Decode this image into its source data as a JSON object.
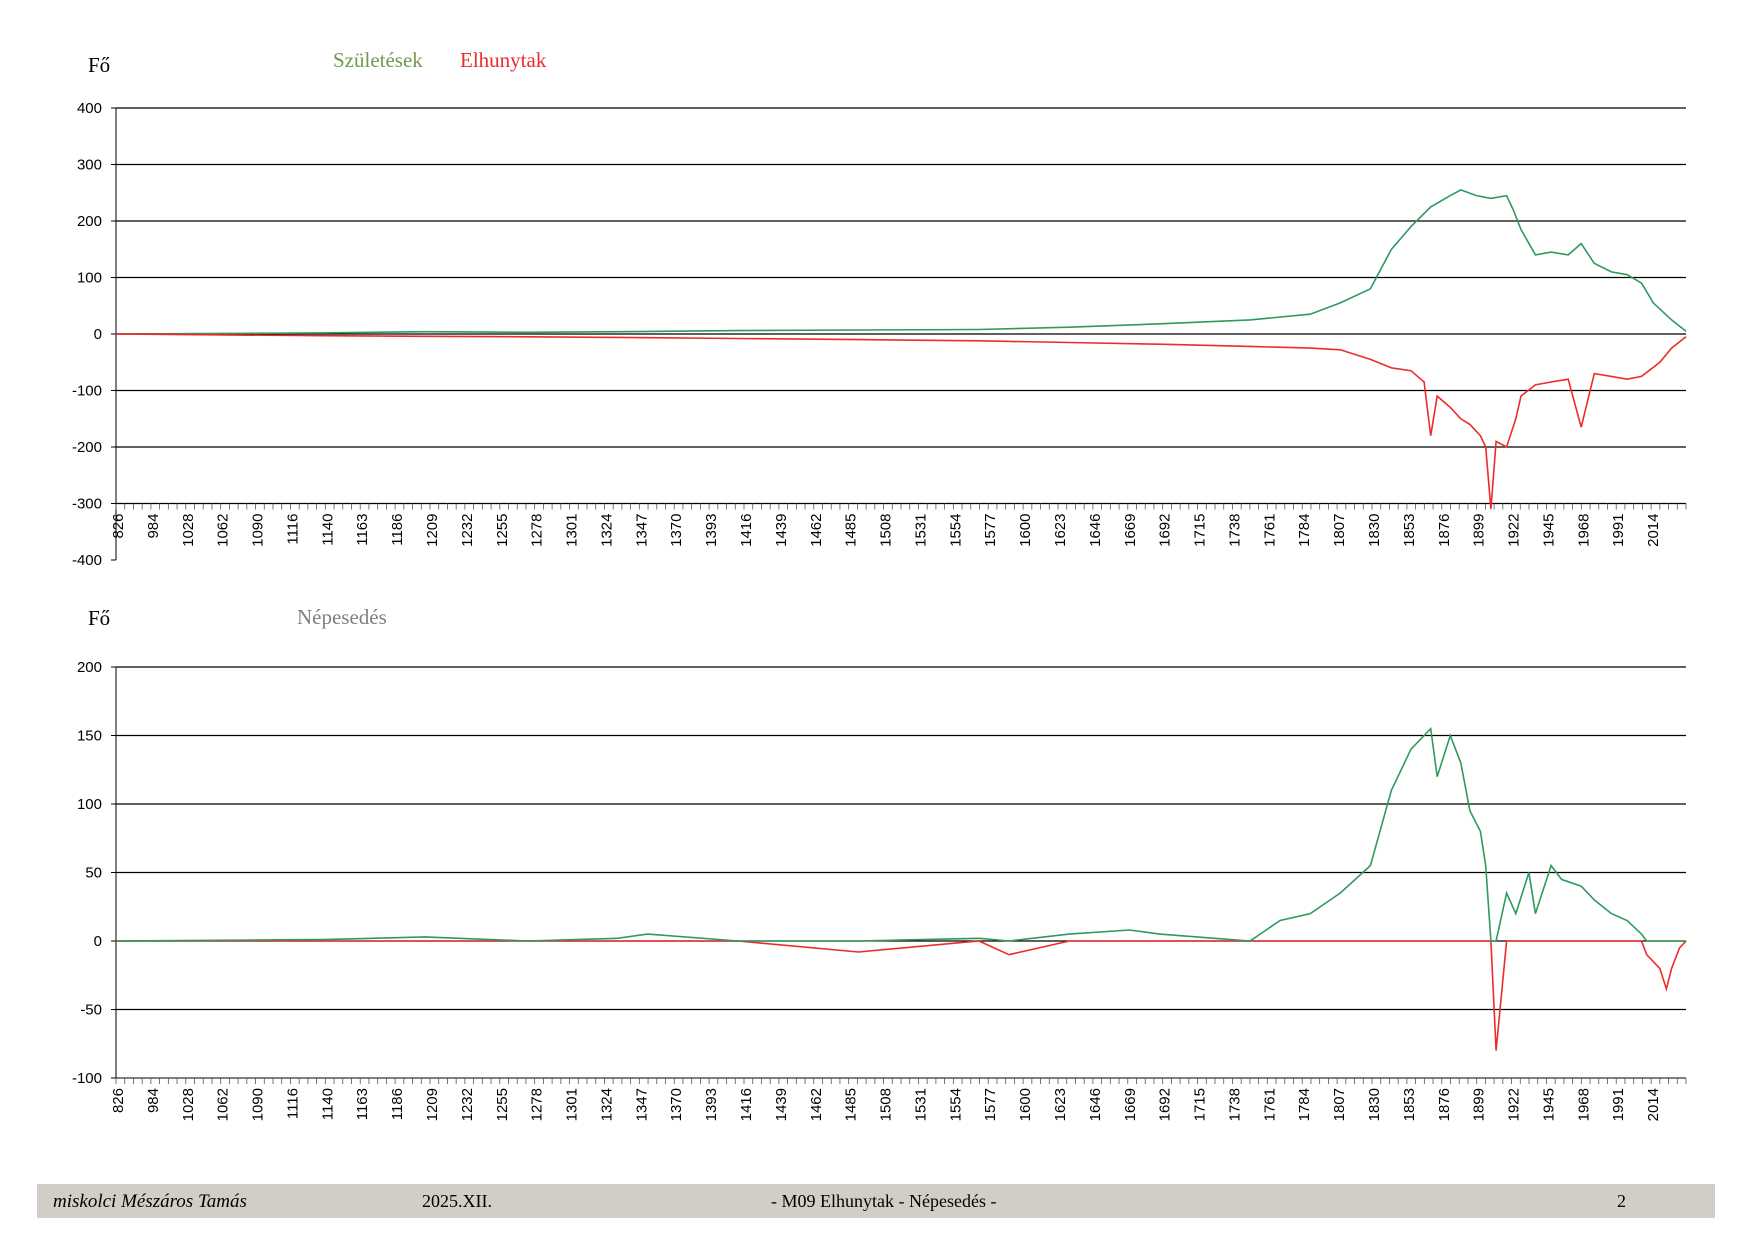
{
  "charts_meta": {
    "y_label": "Fő",
    "x_ticks": [
      "826",
      "984",
      "1028",
      "1062",
      "1090",
      "1116",
      "1140",
      "1163",
      "1186",
      "1209",
      "1232",
      "1255",
      "1278",
      "1301",
      "1324",
      "1347",
      "1370",
      "1393",
      "1416",
      "1439",
      "1462",
      "1485",
      "1508",
      "1531",
      "1554",
      "1577",
      "1600",
      "1623",
      "1646",
      "1669",
      "1692",
      "1715",
      "1738",
      "1761",
      "1784",
      "1807",
      "1830",
      "1853",
      "1876",
      "1899",
      "1922",
      "1945",
      "1968",
      "1991",
      "2014"
    ]
  },
  "chart_data": [
    {
      "type": "line",
      "title": "",
      "ylabel": "Fő",
      "ylim": [
        -400,
        400
      ],
      "yticks": [
        400,
        300,
        200,
        100,
        0,
        -100,
        -200,
        -300,
        -400
      ],
      "grid": true,
      "legend": [
        {
          "name": "Születések",
          "color": "#6f9a4e"
        },
        {
          "name": "Elhunytak",
          "color": "#ee2b2b"
        }
      ],
      "x_range": [
        826,
        2025
      ],
      "series": [
        {
          "name": "Születések",
          "color": "#2e9a5e",
          "x": [
            826,
            984,
            1062,
            1140,
            1209,
            1301,
            1393,
            1485,
            1554,
            1623,
            1692,
            1738,
            1761,
            1784,
            1800,
            1815,
            1830,
            1845,
            1853,
            1865,
            1876,
            1888,
            1893,
            1899,
            1910,
            1922,
            1935,
            1945,
            1955,
            1968,
            1980,
            1991,
            2000,
            2014,
            2025
          ],
          "y": [
            0,
            2,
            4,
            3,
            4,
            6,
            7,
            8,
            12,
            18,
            25,
            35,
            55,
            80,
            150,
            190,
            225,
            245,
            255,
            245,
            240,
            245,
            220,
            185,
            140,
            145,
            140,
            160,
            125,
            110,
            105,
            90,
            55,
            25,
            5
          ]
        },
        {
          "name": "Elhunytak",
          "color": "#ee2b2b",
          "x": [
            826,
            984,
            1062,
            1140,
            1209,
            1301,
            1393,
            1485,
            1554,
            1623,
            1692,
            1738,
            1761,
            1784,
            1800,
            1815,
            1825,
            1830,
            1835,
            1845,
            1853,
            1860,
            1868,
            1872,
            1876,
            1880,
            1888,
            1895,
            1899,
            1910,
            1922,
            1935,
            1945,
            1955,
            1968,
            1980,
            1991,
            2005,
            2014,
            2025
          ],
          "y": [
            0,
            -3,
            -4,
            -5,
            -6,
            -8,
            -10,
            -12,
            -15,
            -18,
            -22,
            -25,
            -28,
            -45,
            -60,
            -65,
            -85,
            -180,
            -110,
            -130,
            -150,
            -160,
            -180,
            -200,
            -310,
            -190,
            -200,
            -150,
            -110,
            -90,
            -85,
            -80,
            -165,
            -70,
            -75,
            -80,
            -75,
            -50,
            -25,
            -5
          ]
        }
      ]
    },
    {
      "type": "line",
      "title": "Népesedés",
      "ylabel": "Fő",
      "ylim": [
        -100,
        200
      ],
      "yticks": [
        200,
        150,
        100,
        50,
        0,
        -50,
        -100
      ],
      "grid": true,
      "x_range": [
        826,
        2025
      ],
      "series": [
        {
          "name": "Népesedés",
          "color": "#2e9a5e",
          "neg_color": "#ee2b2b",
          "x": [
            826,
            984,
            1062,
            1140,
            1209,
            1232,
            1301,
            1393,
            1485,
            1508,
            1554,
            1600,
            1623,
            1692,
            1715,
            1738,
            1761,
            1784,
            1800,
            1815,
            1825,
            1830,
            1835,
            1845,
            1853,
            1860,
            1868,
            1872,
            1876,
            1880,
            1888,
            1895,
            1905,
            1910,
            1922,
            1930,
            1945,
            1955,
            1968,
            1980,
            1991,
            1995,
            2005,
            2010,
            2014,
            2020,
            2025
          ],
          "y": [
            0,
            1,
            3,
            0,
            2,
            5,
            0,
            -8,
            2,
            -10,
            5,
            8,
            5,
            0,
            15,
            20,
            35,
            55,
            110,
            140,
            150,
            155,
            120,
            150,
            130,
            95,
            80,
            55,
            0,
            -80,
            35,
            20,
            50,
            20,
            55,
            45,
            40,
            30,
            20,
            15,
            5,
            -10,
            -20,
            -35,
            -20,
            -5,
            0
          ]
        }
      ]
    }
  ],
  "footer": {
    "author": "miskolci Mészáros Tamás",
    "date": "2025.XII.",
    "center": "- M09  Elhunytak - Népesedés -",
    "page": "2"
  }
}
